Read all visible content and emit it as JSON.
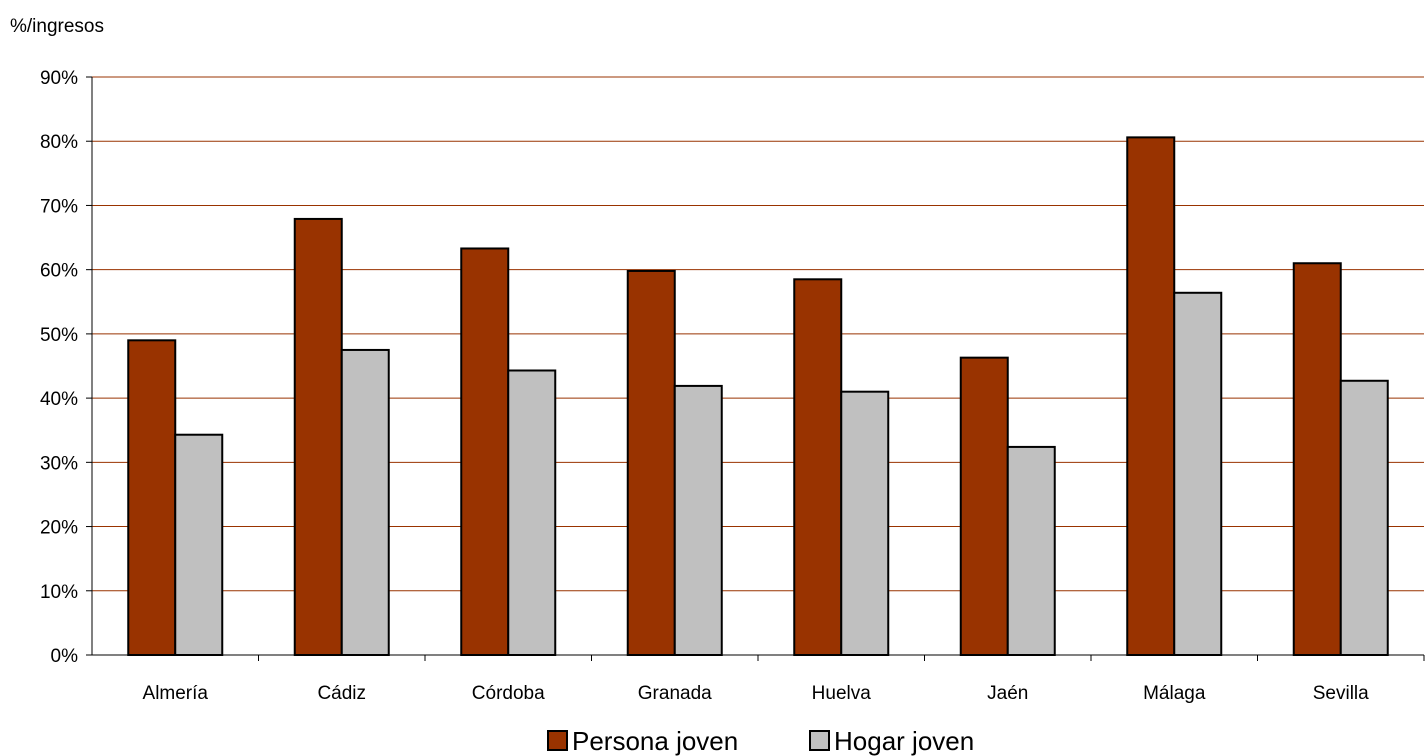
{
  "chart_data": {
    "type": "bar",
    "unit_label": "%/ingresos",
    "categories": [
      "Almería",
      "Cádiz",
      "Córdoba",
      "Granada",
      "Huelva",
      "Jaén",
      "Málaga",
      "Sevilla"
    ],
    "series": [
      {
        "name": "Persona joven",
        "color": "#993300",
        "values": [
          49.0,
          67.9,
          63.3,
          59.8,
          58.5,
          46.3,
          80.6,
          61.0
        ]
      },
      {
        "name": "Hogar joven",
        "color": "#C0C0C0",
        "values": [
          34.3,
          47.5,
          44.3,
          41.9,
          41.0,
          32.4,
          56.4,
          42.7
        ]
      }
    ],
    "y_ticks": [
      "0%",
      "10%",
      "20%",
      "30%",
      "40%",
      "50%",
      "60%",
      "70%",
      "80%",
      "90%"
    ],
    "ylim": [
      0,
      90
    ],
    "grid": true,
    "gridline_color": "#993300",
    "legend_position": "bottom"
  }
}
